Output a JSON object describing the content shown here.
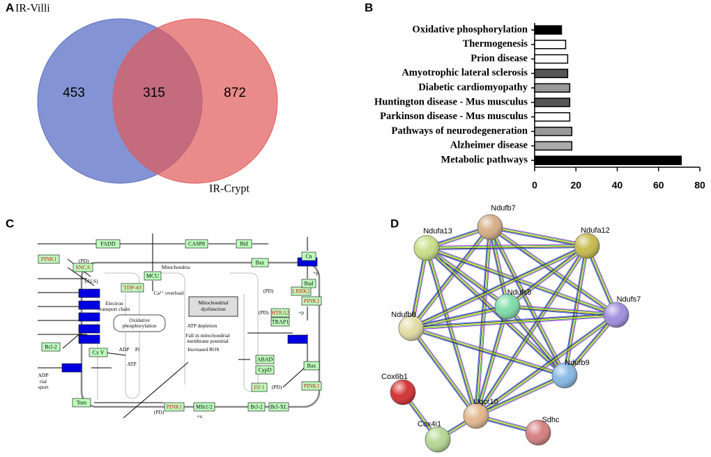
{
  "panel_labels": [
    "A",
    "B",
    "C",
    "D"
  ],
  "venn": {
    "sets": [
      "IR-Villi",
      "IR-Crypt"
    ],
    "only_first": 453,
    "both": 315,
    "only_second": 872
  },
  "chart_data": {
    "type": "hbar",
    "categories": [
      "Oxidative phosphorylation",
      "Thermogenesis",
      "Prion disease",
      "Amyotrophic lateral sclerosis",
      "Diabetic cardiomyopathy",
      "Huntington disease - Mus musculus",
      "Parkinson disease - Mus musculus",
      "Pathways of neurodegeneration",
      "Alzheimer disease",
      "Metabolic pathways"
    ],
    "values": [
      13,
      15,
      16,
      16,
      17,
      17,
      17,
      18,
      18,
      71
    ],
    "colors": [
      "#000000",
      "#ffffff",
      "#ffffff",
      "#555555",
      "#999999",
      "#555555",
      "#ffffff",
      "#999999",
      "#aaaaaa",
      "#000000"
    ],
    "xlim": [
      0,
      80
    ],
    "xticks": [
      0,
      20,
      40,
      60,
      80
    ]
  },
  "pathway": {
    "labels": [
      "FADD",
      "CASP8",
      "Bid",
      "Cn",
      "Bax",
      "MCU",
      "Mitochondria",
      "PINK1",
      "(PD)",
      "SNCA",
      "(ALS)",
      "TDP-43",
      "(PD)",
      "LRRK2",
      "Bad",
      "Ca²⁺ overload",
      "Electron",
      "transport chain",
      "Oxidative",
      "phosphorylation",
      "Mitochondrial",
      "dysfunction",
      "ATP depletion",
      "Fall in mitochondrial",
      "membrane potential",
      "Increased ROS",
      "PINK1",
      "(PD)",
      "HTRA2",
      "TRAP1",
      "+p",
      "Bcl-2",
      "Cx V",
      "ADP",
      "Pi",
      "ATP",
      "ABAD",
      "CypD",
      "Bax",
      "DJ-1",
      "(PD)",
      "Bcl-2",
      "Bcl-XL",
      "PINK1",
      "Tom",
      "PINK1",
      "(PD)",
      "Mfn1/2",
      "+u",
      "ADP",
      "rial",
      "sport",
      "+p"
    ]
  },
  "network": {
    "nodes": [
      "Ndufb7",
      "Ndufa13",
      "Ndufa12",
      "Ndufs8",
      "Ndufs7",
      "Ndufb8",
      "Ndufb9",
      "Cox6b1",
      "Uqcr10",
      "Cox4i1",
      "Sdhc"
    ],
    "edges": [
      [
        0,
        1
      ],
      [
        0,
        2
      ],
      [
        0,
        3
      ],
      [
        0,
        4
      ],
      [
        0,
        5
      ],
      [
        0,
        6
      ],
      [
        0,
        8
      ],
      [
        1,
        2
      ],
      [
        1,
        3
      ],
      [
        1,
        4
      ],
      [
        1,
        5
      ],
      [
        1,
        6
      ],
      [
        1,
        8
      ],
      [
        2,
        3
      ],
      [
        2,
        4
      ],
      [
        2,
        5
      ],
      [
        2,
        6
      ],
      [
        2,
        8
      ],
      [
        3,
        4
      ],
      [
        3,
        5
      ],
      [
        3,
        6
      ],
      [
        3,
        8
      ],
      [
        4,
        5
      ],
      [
        4,
        6
      ],
      [
        4,
        8
      ],
      [
        5,
        6
      ],
      [
        5,
        8
      ],
      [
        6,
        8
      ],
      [
        7,
        9
      ],
      [
        8,
        9
      ],
      [
        8,
        10
      ]
    ]
  }
}
